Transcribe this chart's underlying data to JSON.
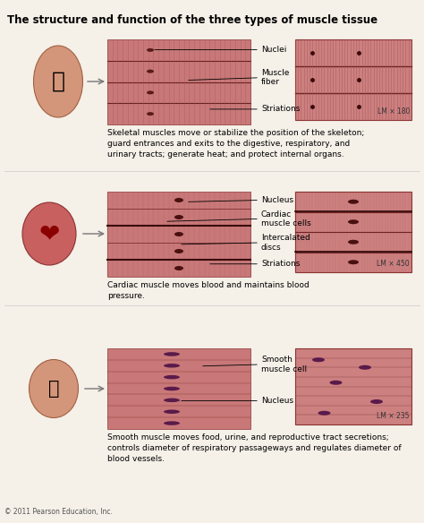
{
  "title": "The structure and function of the three types of muscle tissue",
  "bg_color": "#f5f0e8",
  "sections": [
    {
      "name": "skeletal",
      "labels": [
        "Nuclei",
        "Muscle\nfiber",
        "Striations"
      ],
      "lm_text": "LM × 180",
      "description": "Skeletal muscles move or stabilize the position of the skeleton;\nguard entrances and exits to the digestive, respiratory, and\nurinary tracts; generate heat; and protect internal organs.",
      "diagram_color_left": "#c97070",
      "diagram_color_right": "#d08080",
      "stripe_color": "#b85050"
    },
    {
      "name": "cardiac",
      "labels": [
        "Nucleus",
        "Cardiac\nmuscle cells",
        "Intercalated\ndiscs",
        "Striations"
      ],
      "lm_text": "LM × 450",
      "description": "Cardiac muscle moves blood and maintains blood\npressure.",
      "diagram_color_left": "#c97070",
      "diagram_color_right": "#d08080",
      "stripe_color": "#b85050"
    },
    {
      "name": "smooth",
      "labels": [
        "Smooth\nmuscle cell",
        "Nucleus"
      ],
      "lm_text": "LM × 235",
      "description": "Smooth muscle moves food, urine, and reproductive tract secretions;\ncontrols diameter of respiratory passageways and regulates diameter of\nblood vessels.",
      "diagram_color_left": "#c97070",
      "diagram_color_right": "#d08080",
      "stripe_color": "#b85050"
    }
  ],
  "copyright": "© 2011 Pearson Education, Inc."
}
